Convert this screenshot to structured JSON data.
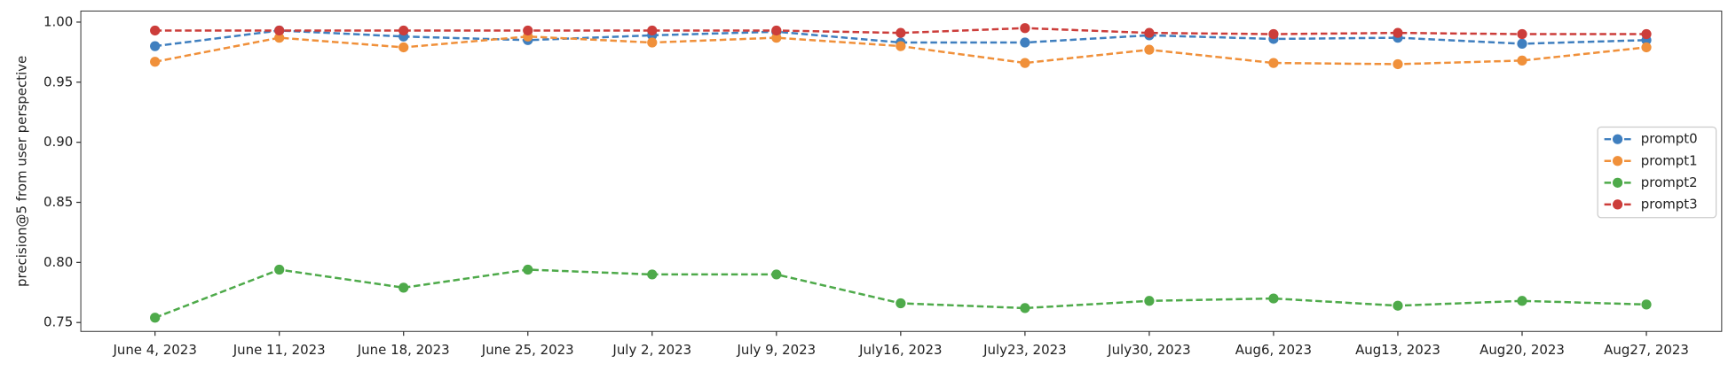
{
  "chart_data": {
    "type": "line",
    "ylabel": "precision@5 from user perspective",
    "categories": [
      "June 4, 2023",
      "June 11, 2023",
      "June 18, 2023",
      "June 25, 2023",
      "July 2, 2023",
      "July 9, 2023",
      "July16, 2023",
      "July23, 2023",
      "July30, 2023",
      "Aug6, 2023",
      "Aug13, 2023",
      "Aug20, 2023",
      "Aug27, 2023"
    ],
    "series": [
      {
        "name": "prompt0",
        "color": "#3f7fbf",
        "values": [
          0.98,
          0.993,
          0.988,
          0.985,
          0.989,
          0.992,
          0.983,
          0.983,
          0.989,
          0.986,
          0.987,
          0.982,
          0.985
        ]
      },
      {
        "name": "prompt1",
        "color": "#f0903a",
        "values": [
          0.967,
          0.987,
          0.979,
          0.988,
          0.983,
          0.987,
          0.98,
          0.966,
          0.977,
          0.966,
          0.965,
          0.968,
          0.979
        ]
      },
      {
        "name": "prompt2",
        "color": "#4eaa4a",
        "values": [
          0.754,
          0.794,
          0.779,
          0.794,
          0.79,
          0.79,
          0.766,
          0.762,
          0.768,
          0.77,
          0.764,
          0.768,
          0.765
        ]
      },
      {
        "name": "prompt3",
        "color": "#cc3d3a",
        "values": [
          0.993,
          0.993,
          0.993,
          0.993,
          0.993,
          0.993,
          0.991,
          0.995,
          0.991,
          0.99,
          0.991,
          0.99,
          0.99
        ]
      }
    ],
    "ylim": [
      0.7426,
      1.0092
    ],
    "yticks": [
      {
        "value": 0.75,
        "label": "0.75"
      },
      {
        "value": 0.8,
        "label": "0.80"
      },
      {
        "value": 0.85,
        "label": "0.85"
      },
      {
        "value": 0.9,
        "label": "0.90"
      },
      {
        "value": 0.95,
        "label": "0.95"
      },
      {
        "value": 1.0,
        "label": "1.00"
      }
    ],
    "legend": "center right",
    "linestyle": "dashed",
    "marker": "circle"
  }
}
